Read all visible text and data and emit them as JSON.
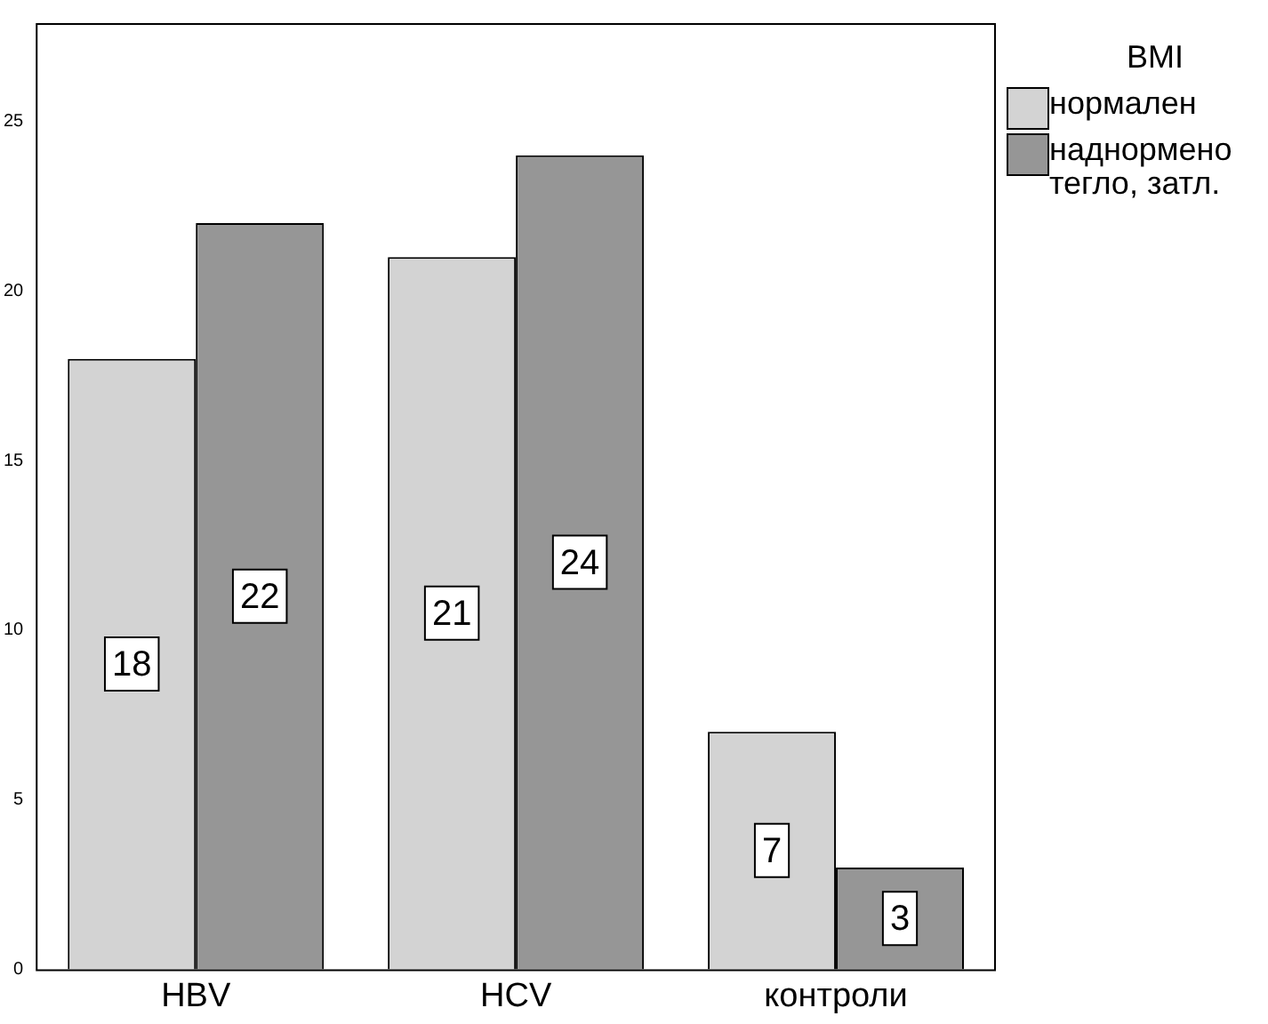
{
  "chart_data": {
    "type": "bar",
    "categories": [
      "HBV",
      "HCV",
      "контроли"
    ],
    "legend_title": "BMI",
    "series": [
      {
        "name": "нормален",
        "color": "#d3d3d3",
        "values": [
          18,
          21,
          7
        ]
      },
      {
        "name": "наднормено тегло, затл.",
        "color": "#969696",
        "values": [
          22,
          24,
          3
        ]
      }
    ],
    "ylim": [
      0,
      27.9
    ],
    "yticks": [
      0,
      5,
      10,
      15,
      20,
      25
    ],
    "grid": false,
    "legend": "right",
    "data_labels": true
  }
}
